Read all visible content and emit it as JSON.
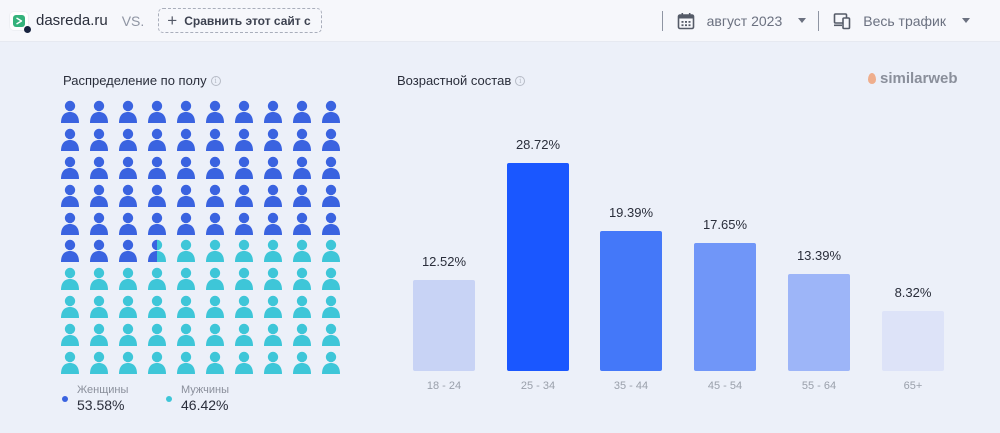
{
  "header": {
    "site_name": "dasreda.ru",
    "vs_label": "VS.",
    "compare_button": "Сравнить этот сайт с",
    "date_label": "август 2023",
    "traffic_label": "Весь трафик"
  },
  "gender": {
    "title": "Распределение по полу",
    "icon_rows": 10,
    "icon_cols": 10,
    "legend": [
      {
        "name": "Женщины",
        "value": "53.58%",
        "color": "#3a63e0"
      },
      {
        "name": "Мужчины",
        "value": "46.42%",
        "color": "#3ec6d8"
      }
    ]
  },
  "age": {
    "title": "Возрастной состав",
    "brand": "similarweb"
  },
  "chart_data": [
    {
      "type": "bar",
      "title": "Возрастной состав",
      "categories": [
        "18 - 24",
        "25 - 34",
        "35 - 44",
        "45 - 54",
        "55 - 64",
        "65+"
      ],
      "values": [
        12.52,
        28.72,
        19.39,
        17.65,
        13.39,
        8.32
      ],
      "labels": [
        "12.52%",
        "28.72%",
        "19.39%",
        "17.65%",
        "13.39%",
        "8.32%"
      ],
      "colors": [
        "#c8d3f5",
        "#1a57ff",
        "#4478f9",
        "#7096f8",
        "#9db5f8",
        "#dde3f8"
      ],
      "xlabel": "",
      "ylabel": "",
      "grid": false,
      "legend": false
    },
    {
      "type": "pictogram",
      "title": "Распределение по полу",
      "categories": [
        "Женщины",
        "Мужчины"
      ],
      "values": [
        53.58,
        46.42
      ],
      "grid": "10x10"
    }
  ]
}
